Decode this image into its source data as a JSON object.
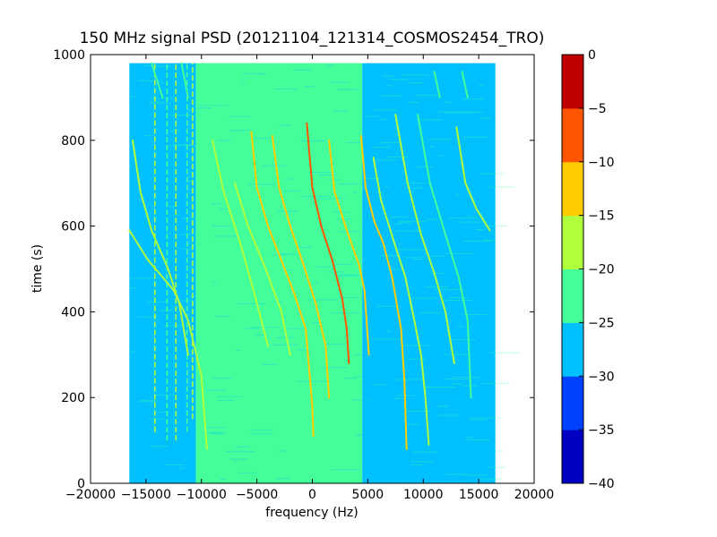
{
  "chart_data": {
    "type": "heatmap",
    "title": "150 MHz signal PSD (20121104_121314_COSMOS2454_TRO)",
    "xlabel": "frequency (Hz)",
    "ylabel": "time (s)",
    "xlim": [
      -20000,
      20000
    ],
    "ylim": [
      0,
      1000
    ],
    "x_ticks": [
      -20000,
      -15000,
      -10000,
      -5000,
      0,
      5000,
      10000,
      15000,
      20000
    ],
    "x_tick_labels": [
      "−20000",
      "−15000",
      "−10000",
      "−5000",
      "0",
      "5000",
      "10000",
      "15000",
      "20000"
    ],
    "y_ticks": [
      0,
      200,
      400,
      600,
      800,
      1000
    ],
    "y_tick_labels": [
      "0",
      "200",
      "400",
      "600",
      "800",
      "1000"
    ],
    "data_extent": {
      "x": [
        -16500,
        16500
      ],
      "y": [
        0,
        980
      ]
    },
    "grid": false,
    "colorbar": {
      "levels": [
        -40,
        -35,
        -30,
        -25,
        -20,
        -15,
        -10,
        -5,
        0
      ],
      "tick_labels": [
        "−40",
        "−35",
        "−30",
        "−25",
        "−20",
        "−15",
        "−10",
        "−5",
        "0"
      ],
      "colors": [
        "#0000c0",
        "#0040ff",
        "#00c0ff",
        "#44ff99",
        "#b0ff3c",
        "#ffcc00",
        "#ff5500",
        "#c00000"
      ]
    },
    "background_bands": [
      {
        "x_range": [
          -16500,
          -10500
        ],
        "level": -27.5,
        "color": "#00c0ff"
      },
      {
        "x_range": [
          -10500,
          4500
        ],
        "level": -22.5,
        "color": "#44ff99"
      },
      {
        "x_range": [
          4500,
          16500
        ],
        "level": -27.5,
        "color": "#00c0ff"
      }
    ],
    "traces": [
      {
        "points": [
          [
            -16500,
            590
          ],
          [
            -14800,
            520
          ],
          [
            -12500,
            450
          ],
          [
            -11200,
            380
          ],
          [
            -10000,
            250
          ],
          [
            -9500,
            80
          ]
        ],
        "level": -17.5
      },
      {
        "points": [
          [
            -16200,
            800
          ],
          [
            -15500,
            680
          ],
          [
            -14500,
            590
          ],
          [
            -13000,
            500
          ],
          [
            -12000,
            420
          ],
          [
            -11200,
            300
          ]
        ],
        "level": -17.5
      },
      {
        "points": [
          [
            -14500,
            980
          ],
          [
            -13500,
            900
          ]
        ],
        "level": -22.5
      },
      {
        "points": [
          [
            -11800,
            980
          ],
          [
            -11200,
            900
          ]
        ],
        "level": -22.5
      },
      {
        "points": [
          [
            -9800,
            950
          ],
          [
            -9200,
            880
          ]
        ],
        "level": -22.5
      },
      {
        "points": [
          [
            -9000,
            800
          ],
          [
            -8000,
            680
          ],
          [
            -6500,
            560
          ],
          [
            -5300,
            450
          ],
          [
            -4000,
            320
          ]
        ],
        "level": -17.5
      },
      {
        "points": [
          [
            -7000,
            700
          ],
          [
            -5800,
            600
          ],
          [
            -4200,
            500
          ],
          [
            -2800,
            400
          ],
          [
            -2000,
            300
          ]
        ],
        "level": -17.5
      },
      {
        "points": [
          [
            -5500,
            820
          ],
          [
            -5000,
            690
          ],
          [
            -4000,
            600
          ],
          [
            -2800,
            520
          ],
          [
            -1600,
            440
          ],
          [
            -600,
            360
          ],
          [
            0,
            180
          ],
          [
            100,
            110
          ]
        ],
        "level": -12.5
      },
      {
        "points": [
          [
            -3600,
            810
          ],
          [
            -3000,
            690
          ],
          [
            -2000,
            600
          ],
          [
            -800,
            510
          ],
          [
            300,
            420
          ],
          [
            1200,
            320
          ],
          [
            1500,
            200
          ]
        ],
        "level": -12.5
      },
      {
        "points": [
          [
            -500,
            840
          ],
          [
            0,
            690
          ],
          [
            800,
            600
          ],
          [
            1800,
            520
          ],
          [
            2700,
            430
          ],
          [
            3100,
            360
          ],
          [
            3300,
            280
          ]
        ],
        "level": -7.5
      },
      {
        "points": [
          [
            1500,
            800
          ],
          [
            2000,
            680
          ],
          [
            3100,
            590
          ],
          [
            4200,
            510
          ],
          [
            4700,
            450
          ],
          [
            5100,
            300
          ]
        ],
        "level": -12.5
      },
      {
        "points": [
          [
            4400,
            810
          ],
          [
            4800,
            690
          ],
          [
            5600,
            610
          ],
          [
            6400,
            560
          ],
          [
            7200,
            480
          ],
          [
            8000,
            360
          ],
          [
            8300,
            240
          ],
          [
            8500,
            80
          ]
        ],
        "level": -12.5
      },
      {
        "points": [
          [
            5500,
            760
          ],
          [
            6200,
            660
          ],
          [
            7400,
            560
          ],
          [
            8400,
            480
          ],
          [
            9200,
            380
          ],
          [
            9800,
            300
          ],
          [
            10200,
            200
          ],
          [
            10500,
            90
          ]
        ],
        "level": -17.5
      },
      {
        "points": [
          [
            7500,
            860
          ],
          [
            8600,
            700
          ],
          [
            9800,
            580
          ],
          [
            11000,
            490
          ],
          [
            12000,
            400
          ],
          [
            12800,
            280
          ]
        ],
        "level": -17.5
      },
      {
        "points": [
          [
            9500,
            860
          ],
          [
            10600,
            700
          ],
          [
            12000,
            580
          ],
          [
            13200,
            480
          ],
          [
            14000,
            380
          ],
          [
            14300,
            200
          ]
        ],
        "level": -22.5
      },
      {
        "points": [
          [
            13000,
            830
          ],
          [
            13800,
            700
          ],
          [
            14800,
            640
          ],
          [
            16000,
            590
          ]
        ],
        "level": -17.5
      },
      {
        "points": [
          [
            11000,
            960
          ],
          [
            11500,
            900
          ]
        ],
        "level": -22.5
      },
      {
        "points": [
          [
            13500,
            960
          ],
          [
            14000,
            900
          ]
        ],
        "level": -22.5
      }
    ],
    "vertical_streaks": [
      {
        "x": -14200,
        "y_range": [
          120,
          980
        ],
        "level": -17.5
      },
      {
        "x": -13100,
        "y_range": [
          100,
          980
        ],
        "level": -22.5
      },
      {
        "x": -12300,
        "y_range": [
          100,
          980
        ],
        "level": -17.5
      },
      {
        "x": -11300,
        "y_range": [
          120,
          980
        ],
        "level": -22.5
      },
      {
        "x": -10800,
        "y_range": [
          150,
          980
        ],
        "level": -17.5
      }
    ]
  }
}
